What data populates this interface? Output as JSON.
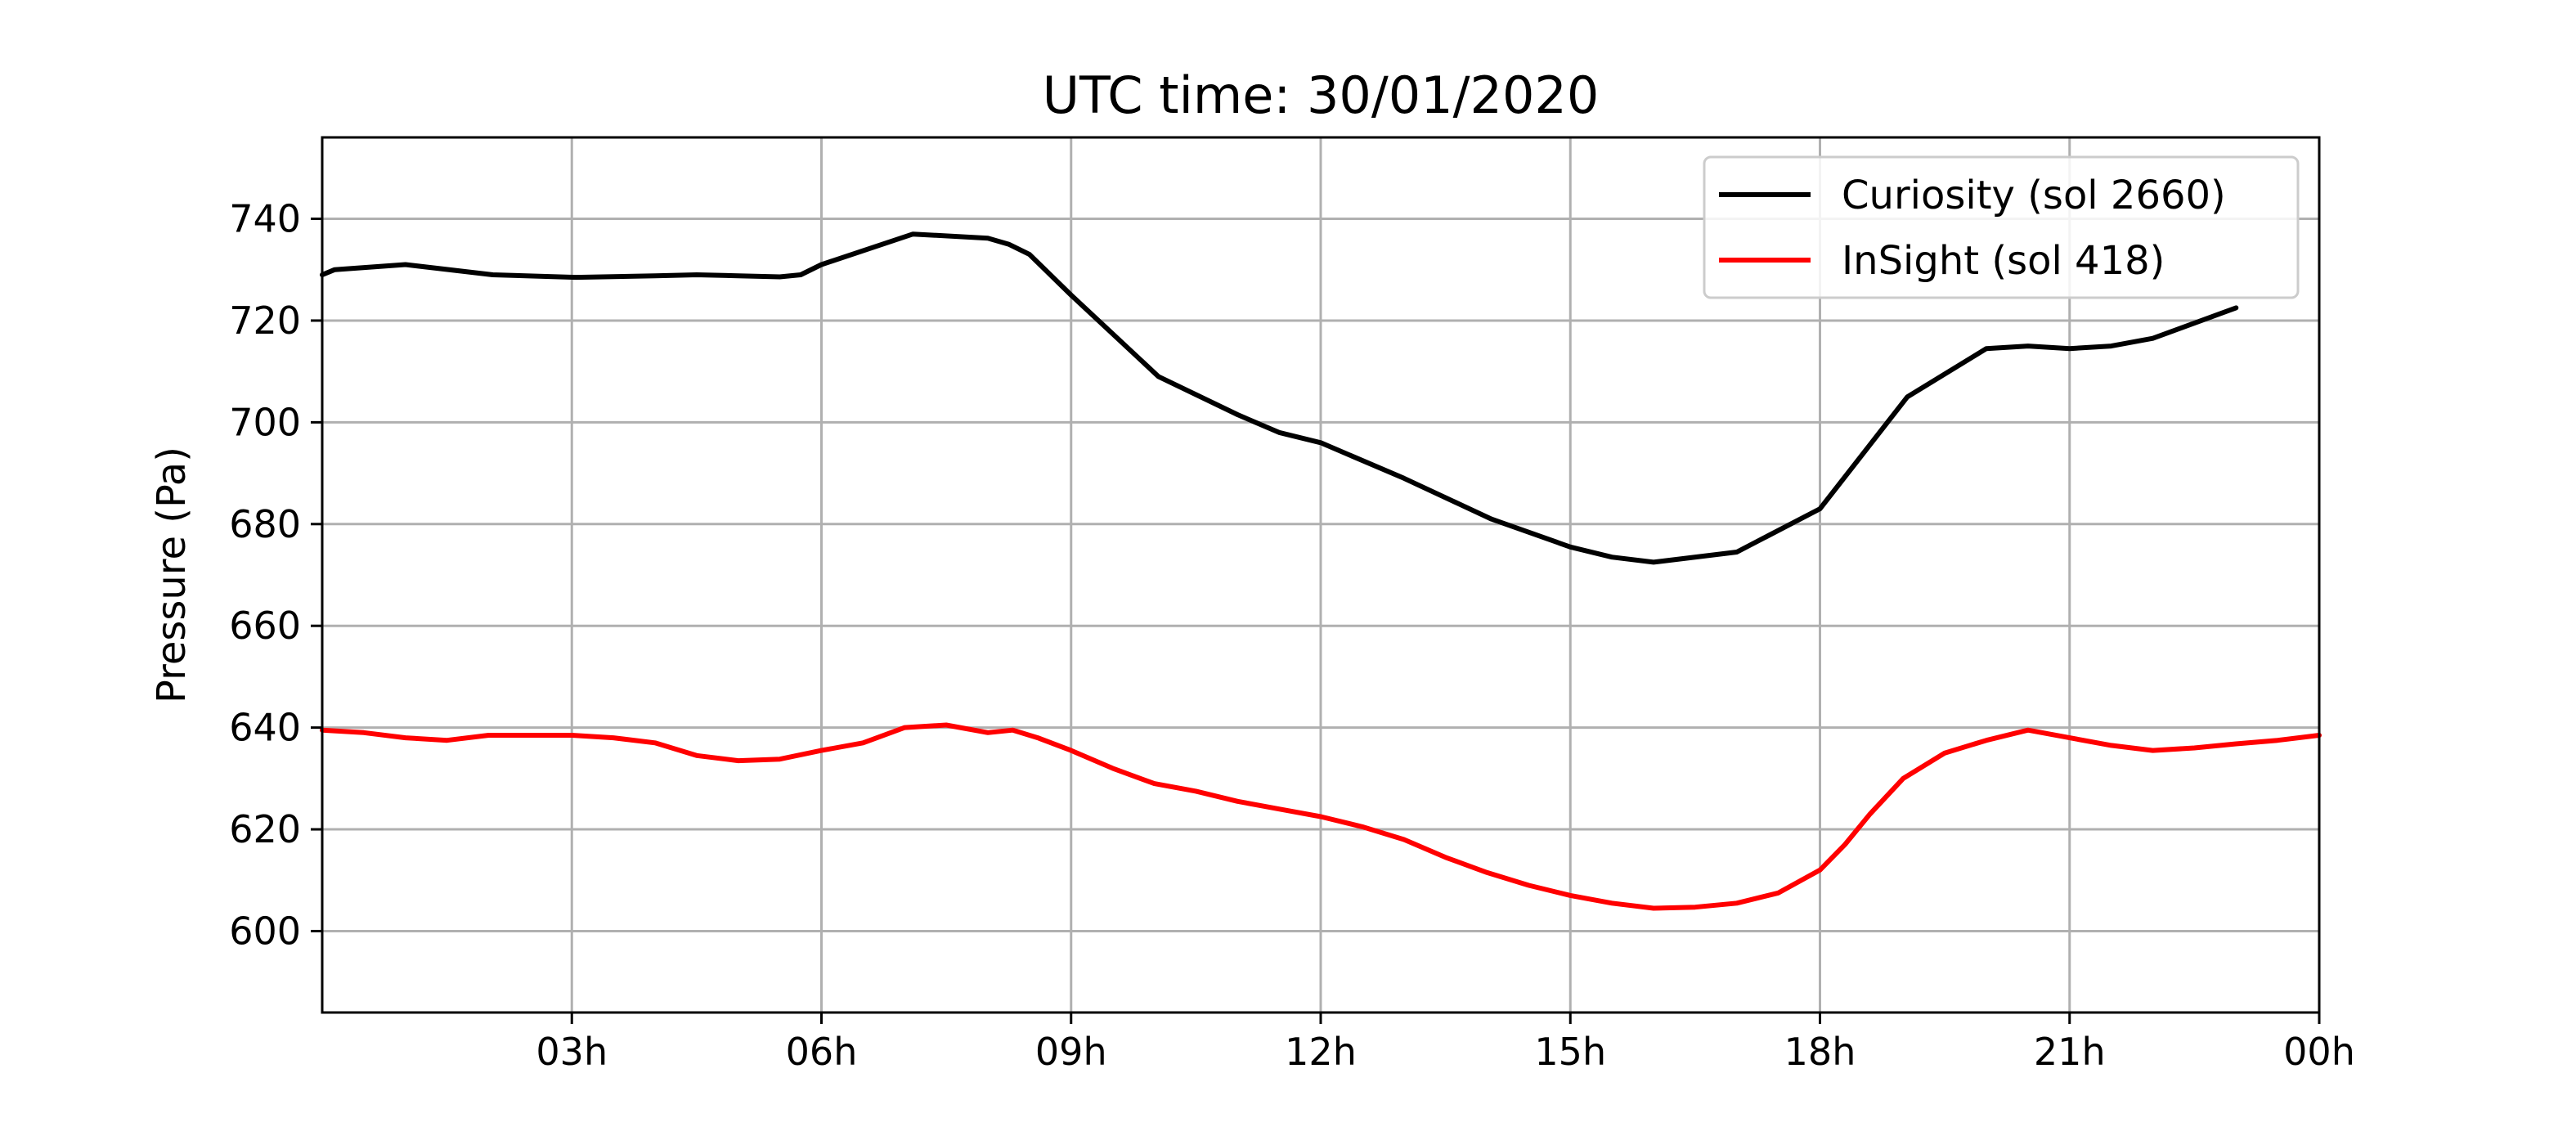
{
  "chart_data": {
    "type": "line",
    "title": "UTC time: 30/01/2020",
    "xlabel": "",
    "ylabel": "Pressure (Pa)",
    "xlim": [
      0,
      24
    ],
    "ylim": [
      584,
      756
    ],
    "x_ticks": [
      {
        "value": 3,
        "label": "03h"
      },
      {
        "value": 6,
        "label": "06h"
      },
      {
        "value": 9,
        "label": "09h"
      },
      {
        "value": 12,
        "label": "12h"
      },
      {
        "value": 15,
        "label": "15h"
      },
      {
        "value": 18,
        "label": "18h"
      },
      {
        "value": 21,
        "label": "21h"
      },
      {
        "value": 24,
        "label": "00h"
      }
    ],
    "y_ticks": [
      {
        "value": 600,
        "label": "600"
      },
      {
        "value": 620,
        "label": "620"
      },
      {
        "value": 640,
        "label": "640"
      },
      {
        "value": 660,
        "label": "660"
      },
      {
        "value": 680,
        "label": "680"
      },
      {
        "value": 700,
        "label": "700"
      },
      {
        "value": 720,
        "label": "720"
      },
      {
        "value": 740,
        "label": "740"
      }
    ],
    "grid": true,
    "legend_position": "top-right",
    "series": [
      {
        "name": "Curiosity (sol 2660)",
        "color": "#000000",
        "x": [
          0.0,
          0.15,
          1.0,
          2.05,
          3.05,
          4.0,
          4.5,
          5.0,
          5.5,
          5.75,
          6.0,
          7.1,
          8.0,
          8.25,
          8.5,
          9.0,
          10.05,
          11.0,
          11.5,
          12.0,
          13.0,
          14.05,
          15.0,
          15.5,
          16.0,
          17.0,
          18.0,
          19.05,
          20.0,
          20.5,
          21.0,
          21.5,
          22.0,
          23.0
        ],
        "y": [
          729,
          730,
          731,
          729,
          728.5,
          728.8,
          729,
          728.8,
          728.6,
          729,
          731,
          737,
          736.2,
          735,
          733,
          725,
          709,
          701.5,
          698,
          696,
          689,
          681,
          675.5,
          673.5,
          672.5,
          674.5,
          683,
          705,
          714.5,
          715,
          714.5,
          715,
          716.5,
          722.5
        ]
      },
      {
        "name": "InSight (sol 418)",
        "color": "#ff0000",
        "x": [
          0.0,
          0.5,
          1.0,
          1.5,
          2.0,
          2.5,
          3.0,
          3.5,
          4.0,
          4.5,
          5.0,
          5.5,
          6.0,
          6.5,
          7.0,
          7.5,
          8.0,
          8.3,
          8.6,
          9.0,
          9.5,
          10.0,
          10.5,
          11.0,
          11.5,
          12.0,
          12.5,
          13.0,
          13.5,
          14.0,
          14.5,
          15.0,
          15.5,
          16.0,
          16.5,
          17.0,
          17.5,
          18.0,
          18.3,
          18.6,
          19.0,
          19.5,
          20.0,
          20.5,
          21.0,
          21.5,
          22.0,
          22.5,
          23.0,
          23.5,
          24.0
        ],
        "y": [
          639.5,
          639,
          638,
          637.5,
          638.5,
          638.5,
          638.5,
          638,
          637,
          634.5,
          633.5,
          633.8,
          635.5,
          637,
          640,
          640.5,
          639,
          639.5,
          638,
          635.5,
          632,
          629,
          627.5,
          625.5,
          624,
          622.5,
          620.5,
          618,
          614.5,
          611.5,
          609,
          607,
          605.5,
          604.5,
          604.7,
          605.5,
          607.5,
          612,
          617,
          623,
          630,
          635,
          637.5,
          639.5,
          638,
          636.5,
          635.5,
          636,
          636.8,
          637.5,
          638.5
        ]
      }
    ]
  }
}
